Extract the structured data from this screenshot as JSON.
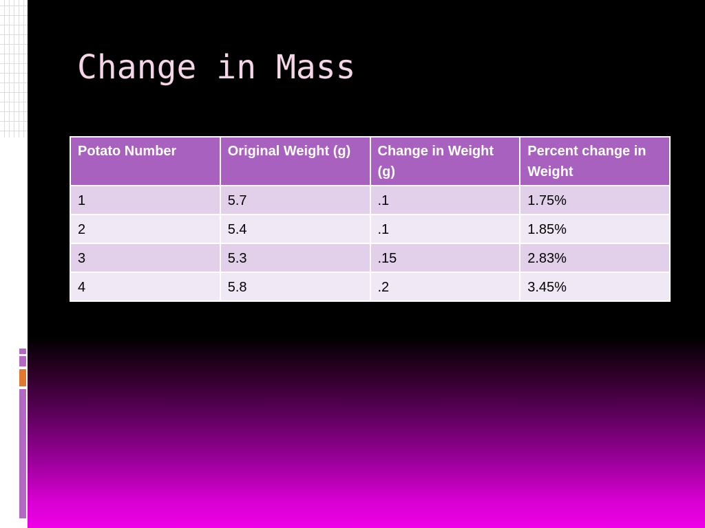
{
  "slide": {
    "title": "Change in Mass"
  },
  "table": {
    "headers": [
      "Potato Number",
      "Original Weight (g)",
      "Change in Weight (g)",
      "Percent change in Weight"
    ],
    "rows": [
      [
        "1",
        "5.7",
        ".1",
        "1.75%"
      ],
      [
        "2",
        "5.4",
        ".1",
        "1.85%"
      ],
      [
        "3",
        "5.3",
        ".15",
        "2.83%"
      ],
      [
        "4",
        "5.8",
        ".2",
        "3.45%"
      ]
    ]
  },
  "colors": {
    "header_bg": "#a861bf",
    "row_odd_bg": "#e2d0ea",
    "row_even_bg": "#f0e8f4",
    "title_color": "#f5d6e8",
    "accent_purple": "#b368c4",
    "accent_orange": "#e07830",
    "gradient_bottom": "#ef00e8"
  }
}
